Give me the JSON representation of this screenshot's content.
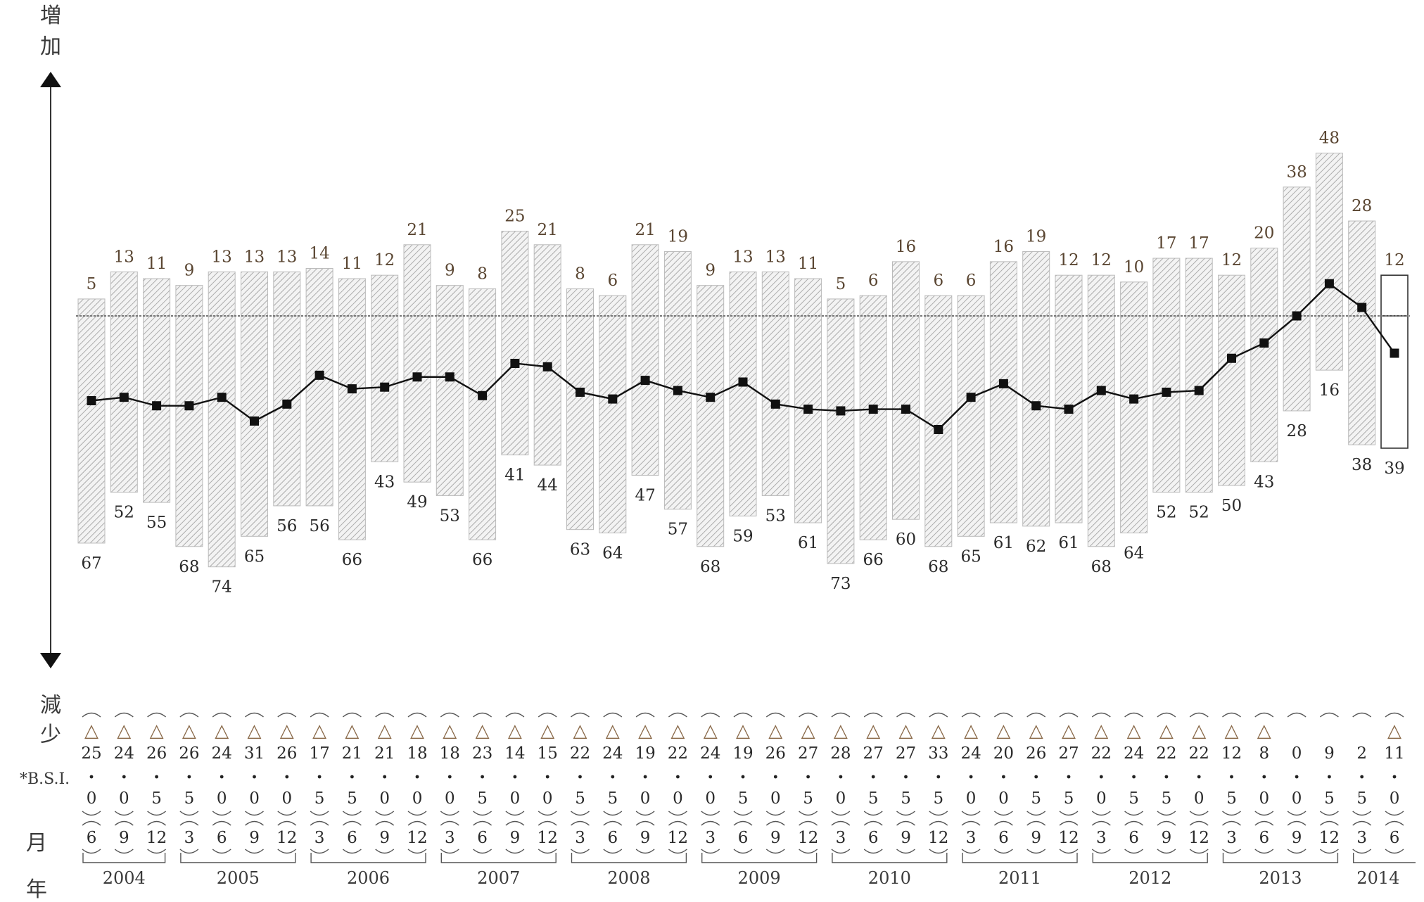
{
  "chart_data": {
    "type": "bar",
    "axis_labels": {
      "increase": "増加",
      "decrease": "減少",
      "bsi_row": "*B.S.I.",
      "month_row": "月",
      "year_row": "年"
    },
    "negative_marker": "△",
    "categories": [
      "2004.6",
      "2004.9",
      "2004.12",
      "2005.3",
      "2005.6",
      "2005.9",
      "2005.12",
      "2006.3",
      "2006.6",
      "2006.9",
      "2006.12",
      "2007.3",
      "2007.6",
      "2007.9",
      "2007.12",
      "2008.3",
      "2008.6",
      "2008.9",
      "2008.12",
      "2009.3",
      "2009.6",
      "2009.9",
      "2009.12",
      "2010.3",
      "2010.6",
      "2010.9",
      "2010.12",
      "2011.3",
      "2011.6",
      "2011.9",
      "2011.12",
      "2012.3",
      "2012.6",
      "2012.9",
      "2012.12",
      "2013.3",
      "2013.6",
      "2013.9",
      "2013.12",
      "2014.3",
      "2014.6"
    ],
    "months": [
      "6",
      "9",
      "12",
      "3",
      "6",
      "9",
      "12",
      "3",
      "6",
      "9",
      "12",
      "3",
      "6",
      "9",
      "12",
      "3",
      "6",
      "9",
      "12",
      "3",
      "6",
      "9",
      "12",
      "3",
      "6",
      "9",
      "12",
      "3",
      "6",
      "9",
      "12",
      "3",
      "6",
      "9",
      "12",
      "3",
      "6",
      "9",
      "12",
      "3",
      "6"
    ],
    "years": [
      {
        "label": "2004",
        "span": [
          0,
          2
        ]
      },
      {
        "label": "2005",
        "span": [
          3,
          6
        ]
      },
      {
        "label": "2006",
        "span": [
          7,
          10
        ]
      },
      {
        "label": "2007",
        "span": [
          11,
          14
        ]
      },
      {
        "label": "2008",
        "span": [
          15,
          18
        ]
      },
      {
        "label": "2009",
        "span": [
          19,
          22
        ]
      },
      {
        "label": "2010",
        "span": [
          23,
          26
        ]
      },
      {
        "label": "2011",
        "span": [
          27,
          30
        ]
      },
      {
        "label": "2012",
        "span": [
          31,
          34
        ]
      },
      {
        "label": "2013",
        "span": [
          35,
          38
        ]
      },
      {
        "label": "2014",
        "span": [
          39,
          40
        ]
      }
    ],
    "series": [
      {
        "name": "増加",
        "values": [
          5,
          13,
          11,
          9,
          13,
          13,
          13,
          14,
          11,
          12,
          21,
          9,
          8,
          25,
          21,
          8,
          6,
          21,
          19,
          9,
          13,
          13,
          11,
          5,
          6,
          16,
          6,
          6,
          16,
          19,
          12,
          12,
          10,
          17,
          17,
          12,
          20,
          38,
          48,
          28,
          12
        ]
      },
      {
        "name": "減少",
        "values": [
          67,
          52,
          55,
          68,
          74,
          65,
          56,
          56,
          66,
          43,
          49,
          53,
          66,
          41,
          44,
          63,
          64,
          47,
          57,
          68,
          59,
          53,
          61,
          73,
          66,
          60,
          68,
          65,
          61,
          62,
          61,
          68,
          64,
          52,
          52,
          50,
          43,
          28,
          16,
          38,
          39
        ]
      },
      {
        "name": "B.S.I.",
        "values": [
          -25.0,
          -24.0,
          -26.5,
          -26.5,
          -24.0,
          -31.0,
          -26.0,
          -17.5,
          -21.5,
          -21.0,
          -18.0,
          -18.0,
          -23.5,
          -14.0,
          -15.0,
          -22.5,
          -24.5,
          -19.0,
          -22.0,
          -24.0,
          -19.5,
          -26.0,
          -27.5,
          -28.0,
          -27.5,
          -27.5,
          -33.5,
          -24.0,
          -20.0,
          -26.5,
          -27.5,
          -22.0,
          -24.5,
          -22.5,
          -22.0,
          -12.5,
          -8.0,
          0.0,
          9.5,
          2.5,
          -11.0
        ]
      }
    ],
    "bsi_integer": [
      "25",
      "24",
      "26",
      "26",
      "24",
      "31",
      "26",
      "17",
      "21",
      "21",
      "18",
      "18",
      "23",
      "14",
      "15",
      "22",
      "24",
      "19",
      "22",
      "24",
      "19",
      "26",
      "27",
      "28",
      "27",
      "27",
      "33",
      "24",
      "20",
      "26",
      "27",
      "22",
      "24",
      "22",
      "22",
      "12",
      "8",
      "0",
      "9",
      "2",
      "11"
    ],
    "bsi_decimal": [
      "0",
      "0",
      "5",
      "5",
      "0",
      "0",
      "0",
      "5",
      "5",
      "0",
      "0",
      "0",
      "5",
      "0",
      "0",
      "5",
      "5",
      "0",
      "0",
      "0",
      "5",
      "0",
      "5",
      "0",
      "5",
      "5",
      "5",
      "0",
      "0",
      "5",
      "5",
      "0",
      "5",
      "5",
      "0",
      "5",
      "0",
      "0",
      "5",
      "5",
      "0"
    ],
    "bsi_negative": [
      true,
      true,
      true,
      true,
      true,
      true,
      true,
      true,
      true,
      true,
      true,
      true,
      true,
      true,
      true,
      true,
      true,
      true,
      true,
      true,
      true,
      true,
      true,
      true,
      true,
      true,
      true,
      true,
      true,
      true,
      true,
      true,
      true,
      true,
      true,
      true,
      true,
      false,
      false,
      false,
      true
    ],
    "highlighted_last": true
  }
}
